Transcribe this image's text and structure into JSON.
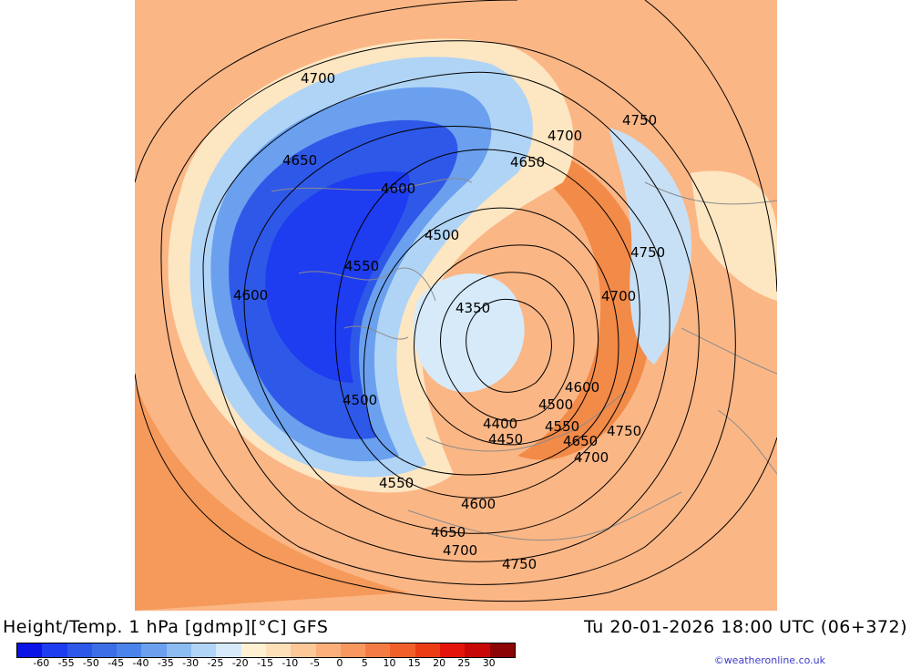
{
  "title": "Height/Temp. 1 hPa [gdmp][°C] GFS",
  "datetime": "Tu 20-01-2026 18:00 UTC (06+372)",
  "credit": "©weatheronline.co.uk",
  "colorbar": {
    "tick_labels": [
      "-60",
      "-55",
      "-50",
      "-45",
      "-40",
      "-35",
      "-30",
      "-25",
      "-20",
      "-15",
      "-10",
      "-5",
      "0",
      "5",
      "10",
      "15",
      "20",
      "25",
      "30"
    ],
    "colors": [
      "#0a14e6",
      "#1e3cf0",
      "#2e58e8",
      "#3c6ee8",
      "#4a84ea",
      "#6aa0ee",
      "#8cbcf2",
      "#b0d4f6",
      "#d6eafa",
      "#fff0d2",
      "#fde0b8",
      "#fcc898",
      "#fbb07c",
      "#f89860",
      "#f47c44",
      "#f06028",
      "#ec3c14",
      "#e4140a",
      "#c80808",
      "#8c0404"
    ]
  },
  "contour_labels": [
    {
      "value": "4700"
    },
    {
      "value": "4650"
    },
    {
      "value": "4600"
    },
    {
      "value": "4550"
    },
    {
      "value": "4500"
    },
    {
      "value": "4600"
    },
    {
      "value": "4350"
    },
    {
      "value": "4500"
    },
    {
      "value": "4400"
    },
    {
      "value": "4450"
    },
    {
      "value": "4550"
    },
    {
      "value": "4600"
    },
    {
      "value": "4650"
    },
    {
      "value": "4700"
    },
    {
      "value": "4750"
    },
    {
      "value": "4750"
    },
    {
      "value": "4700"
    },
    {
      "value": "4650"
    },
    {
      "value": "4750"
    },
    {
      "value": "4700"
    },
    {
      "value": "4600"
    },
    {
      "value": "4500"
    },
    {
      "value": "4550"
    },
    {
      "value": "4650"
    },
    {
      "value": "4750"
    },
    {
      "value": "4700"
    }
  ],
  "colors": {
    "background_warm": "#fbb685",
    "contour_line": "#000000",
    "coast_line": "#8c8c8c",
    "credit_link": "#3b3bcc"
  }
}
